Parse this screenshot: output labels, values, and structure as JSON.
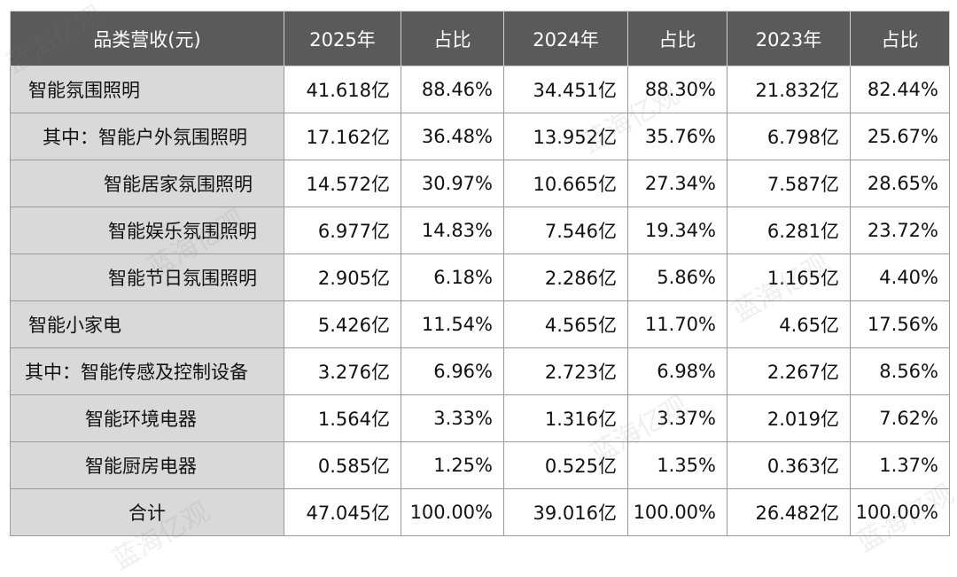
{
  "header": {
    "category": "品类营收(元)",
    "col_2025": "2025年",
    "share_2025": "占比",
    "col_2024": "2024年",
    "share_2024": "占比",
    "col_2023": "2023年",
    "share_2023": "占比"
  },
  "rows": [
    {
      "name": "智能氛围照明",
      "v2025": "41.618亿",
      "s2025": "88.46%",
      "v2024": "34.451亿",
      "s2024": "88.30%",
      "v2023": "21.832亿",
      "s2023": "82.44%"
    },
    {
      "name": "其中：智能户外氛围照明",
      "v2025": "17.162亿",
      "s2025": "36.48%",
      "v2024": "13.952亿",
      "s2024": "35.76%",
      "v2023": "6.798亿",
      "s2023": "25.67%"
    },
    {
      "name": "智能居家氛围照明",
      "v2025": "14.572亿",
      "s2025": "30.97%",
      "v2024": "10.665亿",
      "s2024": "27.34%",
      "v2023": "7.587亿",
      "s2023": "28.65%"
    },
    {
      "name": "智能娱乐氛围照明",
      "v2025": "6.977亿",
      "s2025": "14.83%",
      "v2024": "7.546亿",
      "s2024": "19.34%",
      "v2023": "6.281亿",
      "s2023": "23.72%"
    },
    {
      "name": "智能节日氛围照明",
      "v2025": "2.905亿",
      "s2025": "6.18%",
      "v2024": "2.286亿",
      "s2024": "5.86%",
      "v2023": "1.165亿",
      "s2023": "4.40%"
    },
    {
      "name": "智能小家电",
      "v2025": "5.426亿",
      "s2025": "11.54%",
      "v2024": "4.565亿",
      "s2024": "11.70%",
      "v2023": "4.65亿",
      "s2023": "17.56%"
    },
    {
      "name": "其中：智能传感及控制设备",
      "v2025": "3.276亿",
      "s2025": "6.96%",
      "v2024": "2.723亿",
      "s2024": "6.98%",
      "v2023": "2.267亿",
      "s2023": "8.56%"
    },
    {
      "name": "智能环境电器",
      "v2025": "1.564亿",
      "s2025": "3.33%",
      "v2024": "1.316亿",
      "s2024": "3.37%",
      "v2023": "2.019亿",
      "s2023": "7.62%"
    },
    {
      "name": "智能厨房电器",
      "v2025": "0.585亿",
      "s2025": "1.25%",
      "v2024": "0.525亿",
      "s2024": "1.35%",
      "v2023": "0.363亿",
      "s2023": "1.37%"
    },
    {
      "name": "合计",
      "v2025": "47.045亿",
      "s2025": "100.00%",
      "v2024": "39.016亿",
      "s2024": "100.00%",
      "v2023": "26.482亿",
      "s2023": "100.00%"
    }
  ],
  "watermark": "蓝海亿观",
  "colors": {
    "header_bg": "#5a5a5a",
    "label_bg": "#d9d9d9",
    "border": "#9a9a9a"
  }
}
